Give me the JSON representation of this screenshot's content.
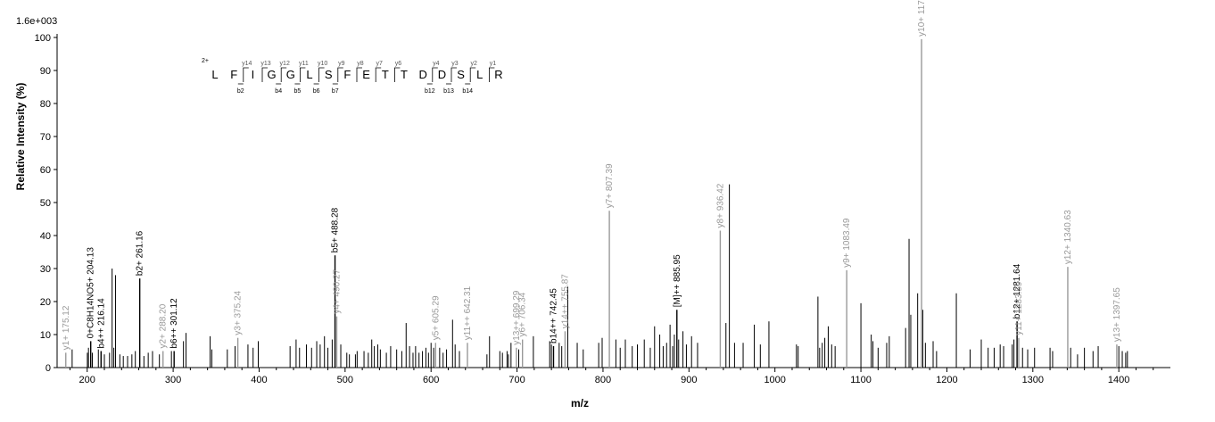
{
  "chart_data": {
    "type": "bar",
    "title": "",
    "scale_label": "1.6e+003",
    "xlabel": "m/z",
    "ylabel": "Relative   Intensity (%)",
    "xlim": [
      165,
      1460
    ],
    "ylim": [
      0,
      100
    ],
    "x_ticks": [
      200,
      300,
      400,
      500,
      600,
      700,
      800,
      900,
      1000,
      1100,
      1200,
      1300,
      1400
    ],
    "y_ticks": [
      0,
      10,
      20,
      30,
      40,
      50,
      60,
      70,
      80,
      90,
      100
    ],
    "grid": false,
    "sequence": {
      "charge": "2+",
      "residues": [
        "L",
        "F",
        "I",
        "G",
        "G",
        "L",
        "S",
        "F",
        "E",
        "T",
        "T",
        "D",
        "D",
        "S",
        "L",
        "R"
      ],
      "y_ions": [
        "y14",
        "y13",
        "y12",
        "y11",
        "y10",
        "y9",
        "y8",
        "y7",
        "y6",
        "y4",
        "y3",
        "y2",
        "y1"
      ],
      "b_ions": [
        "b2",
        "b4",
        "b5",
        "b6",
        "b7",
        "b12",
        "b13",
        "b14"
      ]
    },
    "peaks": [
      [
        175.12,
        4.5
      ],
      [
        182.5,
        5.5
      ],
      [
        200.2,
        4.5
      ],
      [
        201.5,
        6
      ],
      [
        204.13,
        8
      ],
      [
        206,
        4.5
      ],
      [
        213,
        5.5
      ],
      [
        216.14,
        5
      ],
      [
        220,
        4
      ],
      [
        226,
        4.5
      ],
      [
        229,
        30
      ],
      [
        231,
        6
      ],
      [
        233,
        28
      ],
      [
        238,
        4
      ],
      [
        242,
        3.5
      ],
      [
        247,
        3.5
      ],
      [
        252,
        4
      ],
      [
        256,
        5
      ],
      [
        261.16,
        27
      ],
      [
        266,
        3.5
      ],
      [
        271,
        4.5
      ],
      [
        276,
        5
      ],
      [
        284,
        4
      ],
      [
        288.2,
        5
      ],
      [
        298,
        5
      ],
      [
        301.12,
        5
      ],
      [
        312,
        8
      ],
      [
        315,
        10.5
      ],
      [
        343,
        9.5
      ],
      [
        345,
        5.5
      ],
      [
        363,
        5.5
      ],
      [
        372,
        6.5
      ],
      [
        375.24,
        9
      ],
      [
        387,
        7
      ],
      [
        393,
        6
      ],
      [
        399,
        8
      ],
      [
        436,
        6.5
      ],
      [
        443,
        8.5
      ],
      [
        447,
        6
      ],
      [
        455,
        7
      ],
      [
        461,
        6
      ],
      [
        467,
        8
      ],
      [
        471,
        7
      ],
      [
        476,
        9.5
      ],
      [
        480,
        6
      ],
      [
        485,
        8.5
      ],
      [
        488.28,
        34
      ],
      [
        490.27,
        15.5
      ],
      [
        495,
        7
      ],
      [
        502,
        4.5
      ],
      [
        505,
        4
      ],
      [
        512,
        4
      ],
      [
        514,
        5
      ],
      [
        522,
        5
      ],
      [
        527,
        4.5
      ],
      [
        531,
        8.5
      ],
      [
        534,
        6.5
      ],
      [
        538,
        7
      ],
      [
        541,
        5.5
      ],
      [
        548,
        4.5
      ],
      [
        553,
        6.5
      ],
      [
        560,
        5.5
      ],
      [
        566,
        5
      ],
      [
        571,
        13.5
      ],
      [
        575,
        6.5
      ],
      [
        579,
        4.5
      ],
      [
        582,
        6.5
      ],
      [
        586,
        4.5
      ],
      [
        590,
        5
      ],
      [
        594,
        6
      ],
      [
        597,
        4.5
      ],
      [
        600,
        7.5
      ],
      [
        603,
        6
      ],
      [
        605.29,
        7.5
      ],
      [
        610,
        6
      ],
      [
        614,
        4.5
      ],
      [
        618,
        5.5
      ],
      [
        625,
        14.5
      ],
      [
        628,
        7
      ],
      [
        633,
        5
      ],
      [
        642.31,
        7.5
      ],
      [
        665,
        4
      ],
      [
        668,
        9.5
      ],
      [
        680,
        5
      ],
      [
        683,
        4.5
      ],
      [
        688.41,
        5
      ],
      [
        690,
        4
      ],
      [
        693,
        7.5
      ],
      [
        699.29,
        6
      ],
      [
        702,
        5.5
      ],
      [
        706.34,
        8.5
      ],
      [
        719,
        9.5
      ],
      [
        738,
        8
      ],
      [
        740,
        7
      ],
      [
        742.45,
        6.5
      ],
      [
        749,
        7.5
      ],
      [
        752,
        6.5
      ],
      [
        755.87,
        11
      ],
      [
        759,
        24.5
      ],
      [
        770,
        7.5
      ],
      [
        777,
        5.5
      ],
      [
        795,
        7.5
      ],
      [
        799,
        9
      ],
      [
        807.39,
        47.5
      ],
      [
        815,
        8.5
      ],
      [
        820,
        6
      ],
      [
        826,
        8.5
      ],
      [
        834,
        6.5
      ],
      [
        840,
        7
      ],
      [
        848,
        8.5
      ],
      [
        855,
        6
      ],
      [
        860,
        12.5
      ],
      [
        866,
        10
      ],
      [
        870,
        6.5
      ],
      [
        874,
        7.5
      ],
      [
        878,
        13
      ],
      [
        881,
        6.5
      ],
      [
        883,
        10
      ],
      [
        885.95,
        17.5
      ],
      [
        888,
        8.5
      ],
      [
        893,
        11
      ],
      [
        897,
        7
      ],
      [
        903,
        9.5
      ],
      [
        910,
        7.5
      ],
      [
        936.42,
        41.5
      ],
      [
        943,
        13.5
      ],
      [
        947,
        55.5
      ],
      [
        953,
        7.5
      ],
      [
        963,
        7.5
      ],
      [
        976,
        13
      ],
      [
        983,
        7
      ],
      [
        993,
        14
      ],
      [
        1025,
        7
      ],
      [
        1027,
        6.5
      ],
      [
        1050,
        21.5
      ],
      [
        1052,
        6
      ],
      [
        1055,
        7.5
      ],
      [
        1058,
        9
      ],
      [
        1062,
        12.5
      ],
      [
        1066,
        7
      ],
      [
        1070,
        6.5
      ],
      [
        1083.49,
        29.5
      ],
      [
        1100,
        19.5
      ],
      [
        1112,
        10
      ],
      [
        1114,
        8
      ],
      [
        1120,
        6
      ],
      [
        1130,
        7.5
      ],
      [
        1133,
        9.5
      ],
      [
        1152,
        12
      ],
      [
        1156,
        39
      ],
      [
        1158,
        16
      ],
      [
        1166,
        22.5
      ],
      [
        1170.53,
        99.5
      ],
      [
        1172,
        17.5
      ],
      [
        1175,
        7.5
      ],
      [
        1184,
        8
      ],
      [
        1188,
        5
      ],
      [
        1211,
        22.5
      ],
      [
        1227,
        5.5
      ],
      [
        1240,
        8.5
      ],
      [
        1248,
        6
      ],
      [
        1255,
        6
      ],
      [
        1262,
        7
      ],
      [
        1266,
        6.5
      ],
      [
        1276,
        7
      ],
      [
        1278,
        8.5
      ],
      [
        1281.64,
        14
      ],
      [
        1283.59,
        9
      ],
      [
        1288,
        6
      ],
      [
        1294,
        5.5
      ],
      [
        1302,
        6
      ],
      [
        1320,
        6
      ],
      [
        1323,
        5
      ],
      [
        1340.63,
        30.5
      ],
      [
        1344,
        6
      ],
      [
        1352,
        4
      ],
      [
        1360,
        6
      ],
      [
        1370,
        5
      ],
      [
        1376,
        6.5
      ],
      [
        1397.65,
        7
      ],
      [
        1400,
        6.5
      ],
      [
        1404,
        5
      ],
      [
        1408,
        4.5
      ],
      [
        1410,
        5
      ]
    ],
    "labeled_peaks": [
      {
        "x": 175.12,
        "y": 4.5,
        "label": "y1+ 175.12",
        "ion": "y"
      },
      {
        "x": 204.13,
        "y": 8,
        "label": "0+C8H14NO5+ 204.13",
        "ion": "b"
      },
      {
        "x": 216.14,
        "y": 5,
        "label": "b4++ 216.14",
        "ion": "b"
      },
      {
        "x": 261.16,
        "y": 27,
        "label": "b2+ 261.16",
        "ion": "b"
      },
      {
        "x": 288.2,
        "y": 5,
        "label": "y2+ 288.20",
        "ion": "y"
      },
      {
        "x": 301.12,
        "y": 5,
        "label": "b6++ 301.12",
        "ion": "b"
      },
      {
        "x": 375.24,
        "y": 9,
        "label": "y3+ 375.24",
        "ion": "y"
      },
      {
        "x": 488.28,
        "y": 34,
        "label": "b5+ 488.28",
        "ion": "b"
      },
      {
        "x": 490.27,
        "y": 15.5,
        "label": "y4+ 490.27",
        "ion": "y"
      },
      {
        "x": 605.29,
        "y": 7.5,
        "label": "y5+ 605.29",
        "ion": "y"
      },
      {
        "x": 642.31,
        "y": 7.5,
        "label": "y11++ 642.31",
        "ion": "y"
      },
      {
        "x": 699.29,
        "y": 6,
        "label": "y13++ 699.29",
        "ion": "y"
      },
      {
        "x": 706.34,
        "y": 8.5,
        "label": "y6+ 706.34",
        "ion": "y"
      },
      {
        "x": 742.45,
        "y": 6.5,
        "label": "b14++ 742.45",
        "ion": "b"
      },
      {
        "x": 755.87,
        "y": 11,
        "label": "y14++ 755.87",
        "ion": "y"
      },
      {
        "x": 807.39,
        "y": 47.5,
        "label": "y7+ 807.39",
        "ion": "y"
      },
      {
        "x": 885.95,
        "y": 17.5,
        "label": "[M]++ 885.95",
        "ion": "b"
      },
      {
        "x": 936.42,
        "y": 41.5,
        "label": "y8+ 936.42",
        "ion": "y"
      },
      {
        "x": 1083.49,
        "y": 29.5,
        "label": "y9+ 1083.49",
        "ion": "y"
      },
      {
        "x": 1170.53,
        "y": 99.5,
        "label": "y10+ 1170.53",
        "ion": "y"
      },
      {
        "x": 1281.64,
        "y": 14,
        "label": "b12+ 1281.64",
        "ion": "b"
      },
      {
        "x": 1283.59,
        "y": 9,
        "label": "y11+ 1283.59",
        "ion": "y"
      },
      {
        "x": 1340.63,
        "y": 30.5,
        "label": "y12+ 1340.63",
        "ion": "y"
      },
      {
        "x": 1397.65,
        "y": 7,
        "label": "y13+ 1397.65",
        "ion": "y"
      }
    ],
    "colors": {
      "b_ion": "#000000",
      "y_ion": "#999999",
      "axis": "#000000"
    }
  }
}
